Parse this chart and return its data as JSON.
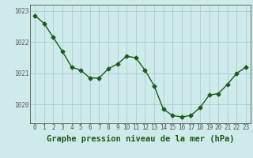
{
  "x": [
    0,
    1,
    2,
    3,
    4,
    5,
    6,
    7,
    8,
    9,
    10,
    11,
    12,
    13,
    14,
    15,
    16,
    17,
    18,
    19,
    20,
    21,
    22,
    23
  ],
  "y": [
    1022.85,
    1022.6,
    1022.15,
    1021.7,
    1021.2,
    1021.1,
    1020.85,
    1020.85,
    1021.15,
    1021.3,
    1021.55,
    1021.5,
    1021.1,
    1020.6,
    1019.85,
    1019.65,
    1019.6,
    1019.65,
    1019.9,
    1020.3,
    1020.35,
    1020.65,
    1021.0,
    1021.2
  ],
  "line_color": "#1a5c1a",
  "marker": "D",
  "marker_size": 2.5,
  "bg_color": "#ceeaea",
  "grid_color": "#aacece",
  "title": "Graphe pression niveau de la mer (hPa)",
  "ylim": [
    1019.4,
    1023.2
  ],
  "yticks": [
    1020,
    1021,
    1022,
    1023
  ],
  "xticks": [
    0,
    1,
    2,
    3,
    4,
    5,
    6,
    7,
    8,
    9,
    10,
    11,
    12,
    13,
    14,
    15,
    16,
    17,
    18,
    19,
    20,
    21,
    22,
    23
  ],
  "line_width": 1.0,
  "title_fontsize": 7.5,
  "tick_fontsize": 5.5,
  "title_color": "#1a5c1a",
  "axis_color": "#555555"
}
